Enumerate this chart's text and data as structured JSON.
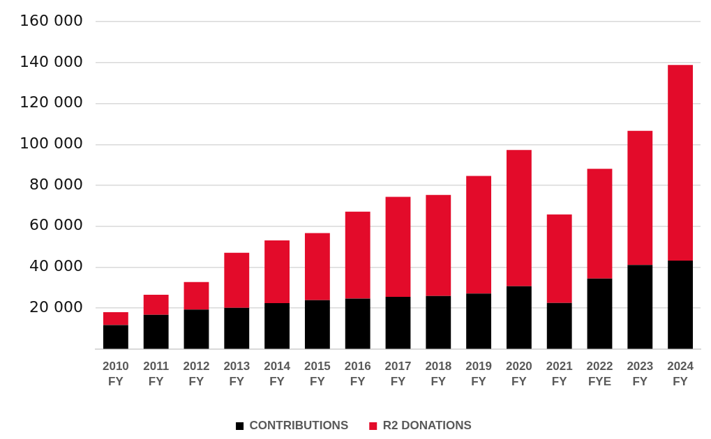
{
  "chart_data": {
    "type": "bar",
    "stacked": true,
    "categories": [
      "2010\nFY",
      "2011\nFY",
      "2012\nFY",
      "2013\nFY",
      "2014\nFY",
      "2015\nFY",
      "2016\nFY",
      "2017\nFY",
      "2018\nFY",
      "2019\nFY",
      "2020\nFY",
      "2021\nFY",
      "2022\nFYE",
      "2023\nFY",
      "2024\nFY"
    ],
    "series": [
      {
        "name": "CONTRIBUTIONS",
        "color": "#000000",
        "values": [
          11700,
          16700,
          19300,
          20100,
          22400,
          23900,
          24600,
          25500,
          25900,
          27100,
          30700,
          22500,
          34400,
          41100,
          43200
        ]
      },
      {
        "name": "R2 DONATIONS",
        "color": "#e30b2a",
        "values": [
          6300,
          9800,
          13400,
          26900,
          30700,
          32800,
          42500,
          48900,
          49400,
          57500,
          66600,
          43300,
          53700,
          65600,
          95700
        ]
      }
    ],
    "ylim": [
      0,
      160000
    ],
    "yticks": [
      {
        "value": 20000,
        "label": "20 000"
      },
      {
        "value": 40000,
        "label": "40 000"
      },
      {
        "value": 60000,
        "label": "60 000"
      },
      {
        "value": 80000,
        "label": "80 000"
      },
      {
        "value": 100000,
        "label": "100 000"
      },
      {
        "value": 120000,
        "label": "120 000"
      },
      {
        "value": 140000,
        "label": "140 000"
      },
      {
        "value": 160000,
        "label": "160 000"
      }
    ],
    "grid": "y",
    "legend": "bottom"
  }
}
